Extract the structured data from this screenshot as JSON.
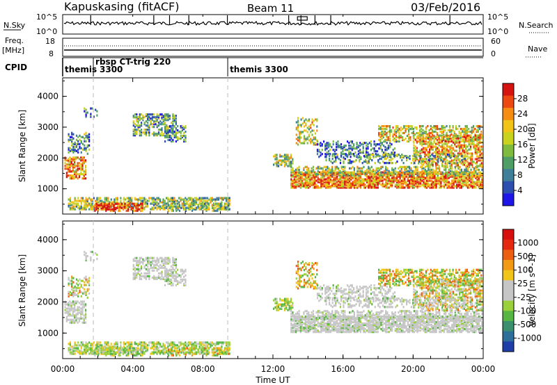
{
  "header": {
    "station": "Kapuskasing (fitACF)",
    "beam": "Beam 11",
    "date": "03/Feb/2016"
  },
  "top_panels": {
    "nsky_label": "N.Sky",
    "nsky_top": "10^5",
    "nsky_bottom": "10^0",
    "nsearch_label": "N.Search",
    "nsearch_top": "10^5",
    "nsearch_bottom": "10^0",
    "freq_label_1": "Freq.",
    "freq_label_2": "[MHz]",
    "freq_top": "18",
    "freq_bottom": "8",
    "nave_label": "Nave",
    "nave_top": "60",
    "nave_bottom": "0",
    "cpid_label": "CPID"
  },
  "cpid_segments": [
    {
      "label": "themis",
      "start_hour": 0.0
    },
    {
      "label": "rbsp CT-trig 220",
      "start_hour": 1.75
    },
    {
      "label": "themis 3300",
      "start_hour": 9.42
    }
  ],
  "cpid_extra_label": "3300",
  "time_axis": {
    "label": "Time UT",
    "ticks": [
      "00:00",
      "04:00",
      "08:00",
      "12:00",
      "16:00",
      "20:00",
      "00:00"
    ],
    "range_hours": [
      0,
      24
    ]
  },
  "chart_data": [
    {
      "type": "heatmap",
      "title": "Power",
      "ylabel": "Slant Range [km]",
      "ylim": [
        180,
        4600
      ],
      "yticks": [
        "1000",
        "2000",
        "3000",
        "4000"
      ],
      "colorbar": {
        "label": "Power [dB]",
        "ticks": [
          "4",
          "8",
          "12",
          "16",
          "20",
          "24",
          "28"
        ],
        "colors": [
          "#1d16e6",
          "#2d4fb0",
          "#3f7f9a",
          "#4f9e66",
          "#7fbb3c",
          "#c8d21f",
          "#f2c418",
          "#f58d12",
          "#ec4912",
          "#d6140f"
        ]
      }
    },
    {
      "type": "heatmap",
      "title": "Velocity",
      "ylabel": "Slant Range [km]",
      "ylim": [
        180,
        4600
      ],
      "yticks": [
        "1000",
        "2000",
        "3000",
        "4000"
      ],
      "colorbar": {
        "label": "Velocity [m s^-1]",
        "ticks": [
          "1000",
          "500",
          "100",
          "25",
          "-25",
          "-100",
          "-500",
          "-1000"
        ],
        "colors": [
          "#1f3fa8",
          "#2e6f9a",
          "#3a8f6e",
          "#57b544",
          "#9ad13a",
          "#c6c6c6",
          "#c6c6c6",
          "#f0c419",
          "#f39a15",
          "#ec5f12",
          "#e52810",
          "#d60e0e"
        ]
      }
    }
  ]
}
